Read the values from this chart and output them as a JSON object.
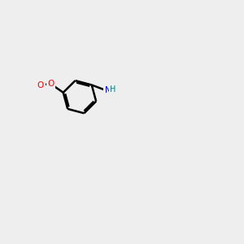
{
  "bgcolor": "#eeeeee",
  "bond_color": "#000000",
  "bond_width": 1.5,
  "atom_colors": {
    "N": "#0000ff",
    "O": "#ff0000",
    "S": "#cccc00",
    "H": "#008080",
    "C": "#000000"
  },
  "font_size": 7.5
}
